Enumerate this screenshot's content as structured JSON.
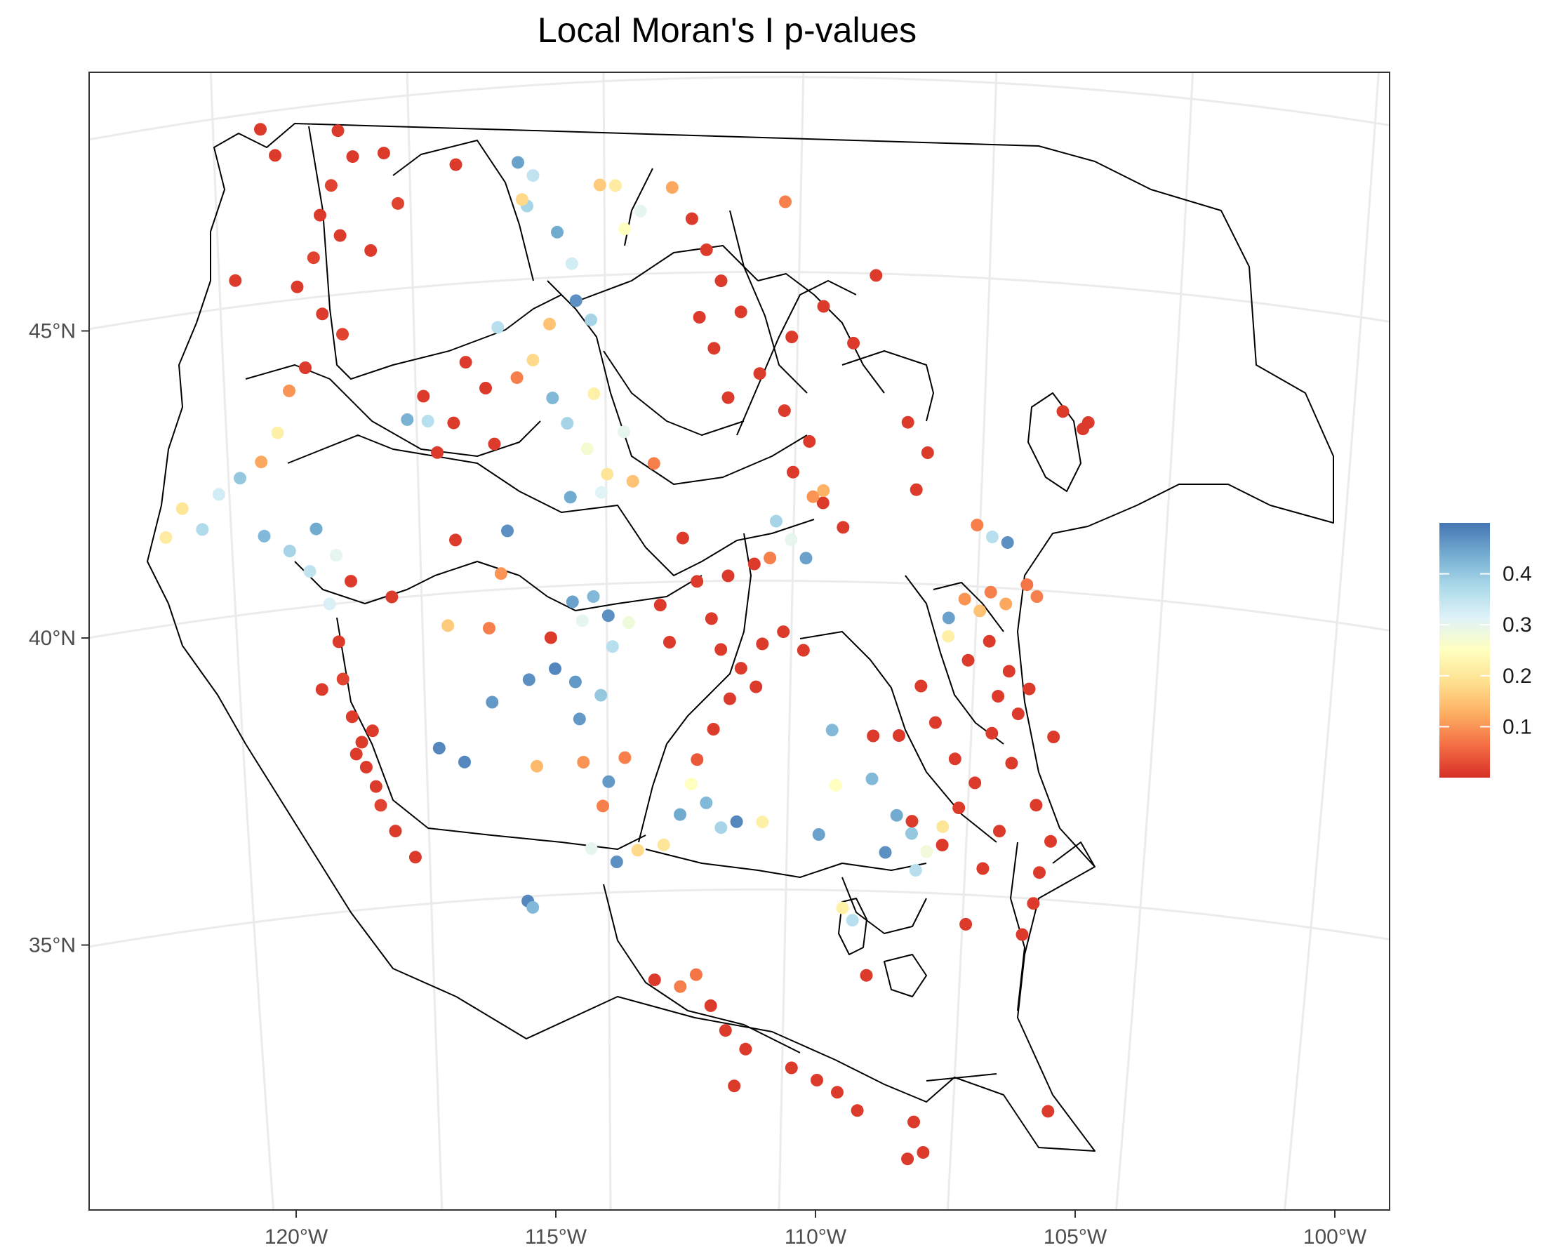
{
  "title": "Local Moran's I p-values",
  "x_axis": {
    "ticks": [
      {
        "value": -120,
        "label": "120°W"
      },
      {
        "value": -115,
        "label": "115°W"
      },
      {
        "value": -110,
        "label": "110°W"
      },
      {
        "value": -105,
        "label": "105°W"
      },
      {
        "value": -100,
        "label": "100°W"
      }
    ]
  },
  "y_axis": {
    "ticks": [
      {
        "value": 45,
        "label": "45°N"
      },
      {
        "value": 40,
        "label": "40°N"
      },
      {
        "value": 35,
        "label": "35°N"
      }
    ]
  },
  "legend": {
    "type": "continuous",
    "placement": "right",
    "min": 0.0,
    "max": 0.5,
    "ticks": [
      {
        "value": 0.1,
        "label": "0.1"
      },
      {
        "value": 0.2,
        "label": "0.2"
      },
      {
        "value": 0.3,
        "label": "0.3"
      },
      {
        "value": 0.4,
        "label": "0.4"
      }
    ],
    "colors": [
      "#d73027",
      "#f46d43",
      "#fdae61",
      "#fee090",
      "#ffffbf",
      "#e0f3f8",
      "#abd9e9",
      "#74add1",
      "#4575b4"
    ]
  },
  "grid": true,
  "chart_data": {
    "type": "scatter",
    "value_name": "p-value",
    "points": [
      {
        "lon": -119.5,
        "lat": 47.9,
        "p": 0.01
      },
      {
        "lon": -119.2,
        "lat": 47.5,
        "p": 0.01
      },
      {
        "lon": -119.6,
        "lat": 47.0,
        "p": 0.02
      },
      {
        "lon": -119.8,
        "lat": 46.5,
        "p": 0.01
      },
      {
        "lon": -119.4,
        "lat": 46.2,
        "p": 0.01
      },
      {
        "lon": -119.9,
        "lat": 45.8,
        "p": 0.02
      },
      {
        "lon": -120.2,
        "lat": 45.3,
        "p": 0.01
      },
      {
        "lon": -119.7,
        "lat": 44.9,
        "p": 0.01
      },
      {
        "lon": -119.3,
        "lat": 44.6,
        "p": 0.02
      },
      {
        "lon": -120.0,
        "lat": 44.0,
        "p": 0.01
      },
      {
        "lon": -121.0,
        "lat": 47.8,
        "p": 0.01
      },
      {
        "lon": -120.7,
        "lat": 47.4,
        "p": 0.01
      },
      {
        "lon": -118.6,
        "lat": 47.6,
        "p": 0.01
      },
      {
        "lon": -118.3,
        "lat": 46.8,
        "p": 0.02
      },
      {
        "lon": -118.8,
        "lat": 46.0,
        "p": 0.01
      },
      {
        "lon": -121.4,
        "lat": 45.3,
        "p": 0.01
      },
      {
        "lon": -117.2,
        "lat": 47.5,
        "p": 0.01
      },
      {
        "lon": -116.0,
        "lat": 47.6,
        "p": 0.45
      },
      {
        "lon": -115.7,
        "lat": 47.4,
        "p": 0.35
      },
      {
        "lon": -115.8,
        "lat": 46.9,
        "p": 0.38
      },
      {
        "lon": -115.2,
        "lat": 46.5,
        "p": 0.44
      },
      {
        "lon": -114.9,
        "lat": 46.0,
        "p": 0.33
      },
      {
        "lon": -114.8,
        "lat": 45.4,
        "p": 0.47
      },
      {
        "lon": -115.3,
        "lat": 45.0,
        "p": 0.15
      },
      {
        "lon": -114.5,
        "lat": 45.1,
        "p": 0.38
      },
      {
        "lon": -113.6,
        "lat": 46.9,
        "p": 0.3
      },
      {
        "lon": -113.9,
        "lat": 46.6,
        "p": 0.25
      },
      {
        "lon": -114.4,
        "lat": 47.3,
        "p": 0.16
      },
      {
        "lon": -114.1,
        "lat": 47.3,
        "p": 0.21
      },
      {
        "lon": -113.0,
        "lat": 47.3,
        "p": 0.12
      },
      {
        "lon": -115.9,
        "lat": 47.0,
        "p": 0.18
      },
      {
        "lon": -112.6,
        "lat": 46.8,
        "p": 0.01
      },
      {
        "lon": -112.3,
        "lat": 46.3,
        "p": 0.01
      },
      {
        "lon": -112.0,
        "lat": 45.8,
        "p": 0.01
      },
      {
        "lon": -112.4,
        "lat": 45.2,
        "p": 0.01
      },
      {
        "lon": -111.6,
        "lat": 45.3,
        "p": 0.01
      },
      {
        "lon": -112.1,
        "lat": 44.7,
        "p": 0.01
      },
      {
        "lon": -111.2,
        "lat": 44.3,
        "p": 0.01
      },
      {
        "lon": -111.8,
        "lat": 43.9,
        "p": 0.01
      },
      {
        "lon": -110.7,
        "lat": 43.7,
        "p": 0.01
      },
      {
        "lon": -110.2,
        "lat": 43.2,
        "p": 0.01
      },
      {
        "lon": -110.5,
        "lat": 42.7,
        "p": 0.01
      },
      {
        "lon": -109.9,
        "lat": 42.2,
        "p": 0.01
      },
      {
        "lon": -109.5,
        "lat": 41.8,
        "p": 0.01
      },
      {
        "lon": -110.0,
        "lat": 45.4,
        "p": 0.01
      },
      {
        "lon": -109.4,
        "lat": 44.8,
        "p": 0.01
      },
      {
        "lon": -110.6,
        "lat": 44.9,
        "p": 0.01
      },
      {
        "lon": -109.0,
        "lat": 45.9,
        "p": 0.01
      },
      {
        "lon": -108.3,
        "lat": 43.5,
        "p": 0.01
      },
      {
        "lon": -107.9,
        "lat": 43.0,
        "p": 0.01
      },
      {
        "lon": -108.1,
        "lat": 42.4,
        "p": 0.01
      },
      {
        "lon": -110.8,
        "lat": 47.1,
        "p": 0.08
      },
      {
        "lon": -117.7,
        "lat": 43.7,
        "p": 0.01
      },
      {
        "lon": -117.1,
        "lat": 43.3,
        "p": 0.01
      },
      {
        "lon": -116.5,
        "lat": 43.9,
        "p": 0.01
      },
      {
        "lon": -116.9,
        "lat": 44.3,
        "p": 0.01
      },
      {
        "lon": -116.3,
        "lat": 43.0,
        "p": 0.01
      },
      {
        "lon": -117.4,
        "lat": 42.8,
        "p": 0.01
      },
      {
        "lon": -115.9,
        "lat": 44.1,
        "p": 0.08
      },
      {
        "lon": -115.6,
        "lat": 44.4,
        "p": 0.18
      },
      {
        "lon": -116.3,
        "lat": 44.9,
        "p": 0.36
      },
      {
        "lon": -115.2,
        "lat": 43.8,
        "p": 0.42
      },
      {
        "lon": -114.9,
        "lat": 43.4,
        "p": 0.38
      },
      {
        "lon": -114.5,
        "lat": 43.0,
        "p": 0.27
      },
      {
        "lon": -114.1,
        "lat": 42.6,
        "p": 0.2
      },
      {
        "lon": -113.6,
        "lat": 42.5,
        "p": 0.15
      },
      {
        "lon": -113.2,
        "lat": 42.8,
        "p": 0.08
      },
      {
        "lon": -114.8,
        "lat": 42.2,
        "p": 0.44
      },
      {
        "lon": -114.4,
        "lat": 43.9,
        "p": 0.22
      },
      {
        "lon": -113.8,
        "lat": 43.3,
        "p": 0.3
      },
      {
        "lon": -114.2,
        "lat": 42.3,
        "p": 0.31
      },
      {
        "lon": -118.0,
        "lat": 43.3,
        "p": 0.43
      },
      {
        "lon": -117.6,
        "lat": 43.3,
        "p": 0.36
      },
      {
        "lon": -116.0,
        "lat": 41.6,
        "p": 0.47
      },
      {
        "lon": -117.0,
        "lat": 41.4,
        "p": 0.01
      },
      {
        "lon": -116.1,
        "lat": 40.9,
        "p": 0.1
      },
      {
        "lon": -120.3,
        "lat": 43.6,
        "p": 0.1
      },
      {
        "lon": -120.5,
        "lat": 42.9,
        "p": 0.22
      },
      {
        "lon": -120.8,
        "lat": 42.4,
        "p": 0.12
      },
      {
        "lon": -121.2,
        "lat": 42.1,
        "p": 0.4
      },
      {
        "lon": -121.6,
        "lat": 41.8,
        "p": 0.33
      },
      {
        "lon": -121.9,
        "lat": 41.2,
        "p": 0.37
      },
      {
        "lon": -122.3,
        "lat": 41.5,
        "p": 0.2
      },
      {
        "lon": -122.6,
        "lat": 41.0,
        "p": 0.21
      },
      {
        "lon": -120.7,
        "lat": 41.2,
        "p": 0.42
      },
      {
        "lon": -120.2,
        "lat": 41.0,
        "p": 0.38
      },
      {
        "lon": -119.8,
        "lat": 40.7,
        "p": 0.35
      },
      {
        "lon": -119.4,
        "lat": 40.2,
        "p": 0.32
      },
      {
        "lon": -119.7,
        "lat": 41.4,
        "p": 0.44
      },
      {
        "lon": -119.3,
        "lat": 41.0,
        "p": 0.3
      },
      {
        "lon": -119.0,
        "lat": 40.6,
        "p": 0.01
      },
      {
        "lon": -118.2,
        "lat": 40.4,
        "p": 0.01
      },
      {
        "lon": -119.2,
        "lat": 39.6,
        "p": 0.01
      },
      {
        "lon": -119.1,
        "lat": 39.0,
        "p": 0.02
      },
      {
        "lon": -119.5,
        "lat": 38.8,
        "p": 0.01
      },
      {
        "lon": -118.9,
        "lat": 38.4,
        "p": 0.01
      },
      {
        "lon": -118.7,
        "lat": 38.0,
        "p": 0.01
      },
      {
        "lon": -118.6,
        "lat": 37.6,
        "p": 0.01
      },
      {
        "lon": -118.4,
        "lat": 37.3,
        "p": 0.01
      },
      {
        "lon": -118.3,
        "lat": 37.0,
        "p": 0.02
      },
      {
        "lon": -118.0,
        "lat": 36.6,
        "p": 0.01
      },
      {
        "lon": -117.6,
        "lat": 36.2,
        "p": 0.01
      },
      {
        "lon": -118.8,
        "lat": 37.8,
        "p": 0.01
      },
      {
        "lon": -118.5,
        "lat": 38.2,
        "p": 0.01
      },
      {
        "lon": -117.1,
        "lat": 40.0,
        "p": 0.16
      },
      {
        "lon": -116.3,
        "lat": 40.0,
        "p": 0.08
      },
      {
        "lon": -115.1,
        "lat": 39.9,
        "p": 0.01
      },
      {
        "lon": -114.7,
        "lat": 40.5,
        "p": 0.45
      },
      {
        "lon": -114.3,
        "lat": 40.6,
        "p": 0.42
      },
      {
        "lon": -114.0,
        "lat": 40.3,
        "p": 0.47
      },
      {
        "lon": -113.9,
        "lat": 39.8,
        "p": 0.36
      },
      {
        "lon": -114.5,
        "lat": 40.2,
        "p": 0.3
      },
      {
        "lon": -113.6,
        "lat": 40.2,
        "p": 0.28
      },
      {
        "lon": -113.0,
        "lat": 40.5,
        "p": 0.01
      },
      {
        "lon": -115.0,
        "lat": 39.4,
        "p": 0.48
      },
      {
        "lon": -114.6,
        "lat": 39.2,
        "p": 0.46
      },
      {
        "lon": -114.1,
        "lat": 39.0,
        "p": 0.4
      },
      {
        "lon": -114.5,
        "lat": 38.6,
        "p": 0.46
      },
      {
        "lon": -115.5,
        "lat": 39.2,
        "p": 0.47
      },
      {
        "lon": -116.2,
        "lat": 38.8,
        "p": 0.46
      },
      {
        "lon": -117.2,
        "lat": 38.0,
        "p": 0.48
      },
      {
        "lon": -116.7,
        "lat": 37.8,
        "p": 0.48
      },
      {
        "lon": -115.3,
        "lat": 37.8,
        "p": 0.14
      },
      {
        "lon": -114.4,
        "lat": 37.9,
        "p": 0.1
      },
      {
        "lon": -114.0,
        "lat": 37.2,
        "p": 0.08
      },
      {
        "lon": -113.9,
        "lat": 37.6,
        "p": 0.46
      },
      {
        "lon": -113.6,
        "lat": 38.0,
        "p": 0.08
      },
      {
        "lon": -112.3,
        "lat": 40.9,
        "p": 0.01
      },
      {
        "lon": -112.0,
        "lat": 40.3,
        "p": 0.01
      },
      {
        "lon": -111.8,
        "lat": 39.8,
        "p": 0.01
      },
      {
        "lon": -111.4,
        "lat": 39.5,
        "p": 0.01
      },
      {
        "lon": -111.0,
        "lat": 39.9,
        "p": 0.01
      },
      {
        "lon": -110.6,
        "lat": 40.1,
        "p": 0.01
      },
      {
        "lon": -110.2,
        "lat": 39.8,
        "p": 0.01
      },
      {
        "lon": -111.6,
        "lat": 39.0,
        "p": 0.01
      },
      {
        "lon": -111.9,
        "lat": 38.5,
        "p": 0.01
      },
      {
        "lon": -112.2,
        "lat": 38.0,
        "p": 0.04
      },
      {
        "lon": -111.2,
        "lat": 41.2,
        "p": 0.01
      },
      {
        "lon": -112.6,
        "lat": 41.6,
        "p": 0.01
      },
      {
        "lon": -111.7,
        "lat": 41.0,
        "p": 0.01
      },
      {
        "lon": -112.8,
        "lat": 39.9,
        "p": 0.01
      },
      {
        "lon": -111.1,
        "lat": 39.2,
        "p": 0.01
      },
      {
        "lon": -110.8,
        "lat": 41.9,
        "p": 0.38
      },
      {
        "lon": -110.5,
        "lat": 41.6,
        "p": 0.3
      },
      {
        "lon": -110.2,
        "lat": 41.3,
        "p": 0.45
      },
      {
        "lon": -110.9,
        "lat": 41.3,
        "p": 0.08
      },
      {
        "lon": -109.6,
        "lat": 38.5,
        "p": 0.42
      },
      {
        "lon": -112.3,
        "lat": 37.6,
        "p": 0.25
      },
      {
        "lon": -112.0,
        "lat": 37.3,
        "p": 0.42
      },
      {
        "lon": -112.5,
        "lat": 37.1,
        "p": 0.44
      },
      {
        "lon": -111.7,
        "lat": 36.9,
        "p": 0.38
      },
      {
        "lon": -111.4,
        "lat": 37.0,
        "p": 0.48
      },
      {
        "lon": -112.8,
        "lat": 36.6,
        "p": 0.2
      },
      {
        "lon": -113.3,
        "lat": 36.5,
        "p": 0.18
      },
      {
        "lon": -113.7,
        "lat": 36.3,
        "p": 0.47
      },
      {
        "lon": -114.2,
        "lat": 36.5,
        "p": 0.3
      },
      {
        "lon": -110.9,
        "lat": 37.0,
        "p": 0.22
      },
      {
        "lon": -109.8,
        "lat": 36.8,
        "p": 0.45
      },
      {
        "lon": -109.5,
        "lat": 37.6,
        "p": 0.25
      },
      {
        "lon": -108.3,
        "lat": 37.1,
        "p": 0.44
      },
      {
        "lon": -108.0,
        "lat": 36.8,
        "p": 0.4
      },
      {
        "lon": -107.7,
        "lat": 36.5,
        "p": 0.28
      },
      {
        "lon": -107.4,
        "lat": 36.9,
        "p": 0.2
      },
      {
        "lon": -108.5,
        "lat": 36.5,
        "p": 0.47
      },
      {
        "lon": -107.9,
        "lat": 36.2,
        "p": 0.36
      },
      {
        "lon": -108.8,
        "lat": 37.7,
        "p": 0.42
      },
      {
        "lon": -115.4,
        "lat": 35.6,
        "p": 0.48
      },
      {
        "lon": -115.3,
        "lat": 35.5,
        "p": 0.42
      },
      {
        "lon": -109.3,
        "lat": 35.6,
        "p": 0.22
      },
      {
        "lon": -109.1,
        "lat": 35.4,
        "p": 0.36
      },
      {
        "lon": -107.4,
        "lat": 40.3,
        "p": 0.45
      },
      {
        "lon": -107.1,
        "lat": 40.6,
        "p": 0.1
      },
      {
        "lon": -106.8,
        "lat": 40.4,
        "p": 0.15
      },
      {
        "lon": -107.4,
        "lat": 40.0,
        "p": 0.22
      },
      {
        "lon": -106.6,
        "lat": 40.7,
        "p": 0.08
      },
      {
        "lon": -106.3,
        "lat": 40.5,
        "p": 0.12
      },
      {
        "lon": -105.9,
        "lat": 40.8,
        "p": 0.07
      },
      {
        "lon": -107.0,
        "lat": 39.6,
        "p": 0.01
      },
      {
        "lon": -106.6,
        "lat": 39.9,
        "p": 0.01
      },
      {
        "lon": -106.2,
        "lat": 39.4,
        "p": 0.01
      },
      {
        "lon": -105.8,
        "lat": 39.1,
        "p": 0.01
      },
      {
        "lon": -106.0,
        "lat": 38.7,
        "p": 0.01
      },
      {
        "lon": -106.5,
        "lat": 38.4,
        "p": 0.01
      },
      {
        "lon": -107.2,
        "lat": 38.0,
        "p": 0.01
      },
      {
        "lon": -107.6,
        "lat": 38.6,
        "p": 0.01
      },
      {
        "lon": -107.9,
        "lat": 39.2,
        "p": 0.01
      },
      {
        "lon": -106.8,
        "lat": 37.6,
        "p": 0.01
      },
      {
        "lon": -107.1,
        "lat": 37.2,
        "p": 0.01
      },
      {
        "lon": -106.3,
        "lat": 36.8,
        "p": 0.01
      },
      {
        "lon": -106.6,
        "lat": 36.2,
        "p": 0.01
      },
      {
        "lon": -105.5,
        "lat": 36.1,
        "p": 0.01
      },
      {
        "lon": -105.3,
        "lat": 36.6,
        "p": 0.01
      },
      {
        "lon": -105.6,
        "lat": 35.6,
        "p": 0.01
      },
      {
        "lon": -105.8,
        "lat": 35.1,
        "p": 0.01
      },
      {
        "lon": -106.9,
        "lat": 35.3,
        "p": 0.01
      },
      {
        "lon": -106.1,
        "lat": 37.9,
        "p": 0.01
      },
      {
        "lon": -105.3,
        "lat": 38.3,
        "p": 0.01
      },
      {
        "lon": -105.6,
        "lat": 37.2,
        "p": 0.01
      },
      {
        "lon": -108.8,
        "lat": 38.4,
        "p": 0.01
      },
      {
        "lon": -108.3,
        "lat": 38.4,
        "p": 0.01
      },
      {
        "lon": -108.0,
        "lat": 37.0,
        "p": 0.01
      },
      {
        "lon": -107.4,
        "lat": 36.6,
        "p": 0.01
      },
      {
        "lon": -106.4,
        "lat": 39.0,
        "p": 0.01
      },
      {
        "lon": -105.7,
        "lat": 40.6,
        "p": 0.08
      },
      {
        "lon": -106.9,
        "lat": 41.8,
        "p": 0.08
      },
      {
        "lon": -106.6,
        "lat": 41.6,
        "p": 0.36
      },
      {
        "lon": -106.3,
        "lat": 41.5,
        "p": 0.47
      },
      {
        "lon": -105.3,
        "lat": 43.6,
        "p": 0.01
      },
      {
        "lon": -104.9,
        "lat": 43.3,
        "p": 0.01
      },
      {
        "lon": -104.8,
        "lat": 43.4,
        "p": 0.01
      },
      {
        "lon": -110.1,
        "lat": 42.3,
        "p": 0.1
      },
      {
        "lon": -109.9,
        "lat": 42.4,
        "p": 0.13
      },
      {
        "lon": -108.8,
        "lat": 34.5,
        "p": 0.01
      },
      {
        "lon": -112.9,
        "lat": 34.4,
        "p": 0.01
      },
      {
        "lon": -112.4,
        "lat": 34.3,
        "p": 0.08
      },
      {
        "lon": -112.1,
        "lat": 34.5,
        "p": 0.07
      },
      {
        "lon": -111.8,
        "lat": 34.0,
        "p": 0.01
      },
      {
        "lon": -111.5,
        "lat": 33.6,
        "p": 0.01
      },
      {
        "lon": -111.1,
        "lat": 33.3,
        "p": 0.01
      },
      {
        "lon": -110.2,
        "lat": 33.0,
        "p": 0.01
      },
      {
        "lon": -109.7,
        "lat": 32.8,
        "p": 0.01
      },
      {
        "lon": -109.3,
        "lat": 32.6,
        "p": 0.01
      },
      {
        "lon": -108.9,
        "lat": 32.3,
        "p": 0.01
      },
      {
        "lon": -107.8,
        "lat": 32.1,
        "p": 0.01
      },
      {
        "lon": -107.6,
        "lat": 31.6,
        "p": 0.01
      },
      {
        "lon": -107.9,
        "lat": 31.5,
        "p": 0.01
      },
      {
        "lon": -111.3,
        "lat": 32.7,
        "p": 0.01
      },
      {
        "lon": -105.2,
        "lat": 32.2,
        "p": 0.01
      }
    ]
  }
}
